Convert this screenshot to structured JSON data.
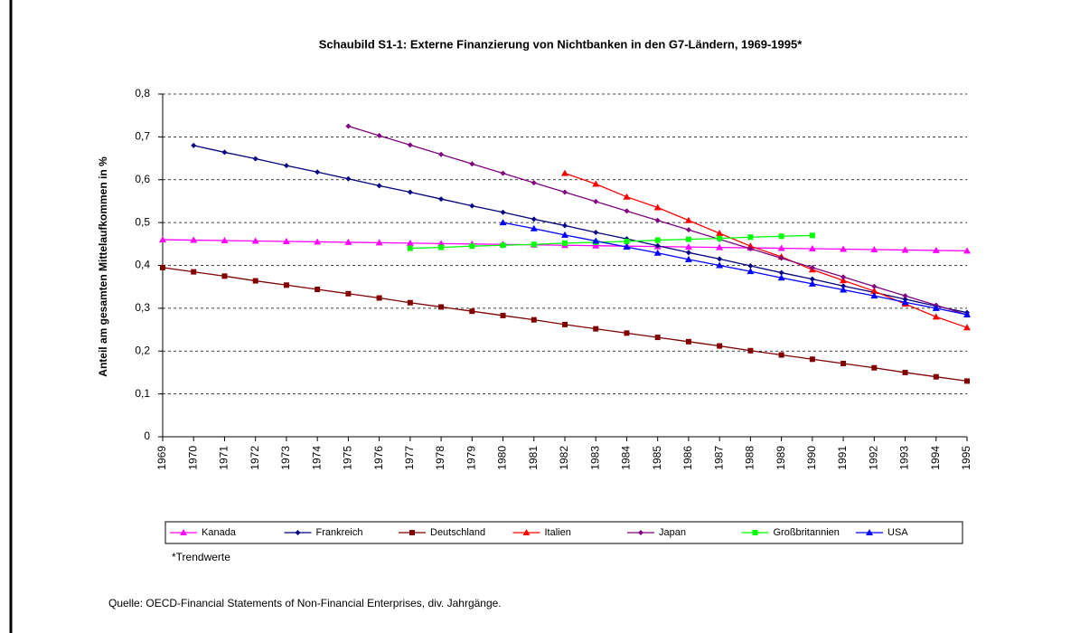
{
  "chart_data": {
    "type": "line",
    "title": "Schaubild S1-1: Externe Finanzierung von Nichtbanken in den G7-Ländern, 1969-1995*",
    "y_label": "Anteil am gesamten Mittelaufkommen in %",
    "note": "*Trendwerte",
    "source": "Quelle: OECD-Financial Statements of Non-Financial Enterprises, div. Jahrgänge.",
    "categories": [
      "1969",
      "1970",
      "1971",
      "1972",
      "1973",
      "1974",
      "1975",
      "1976",
      "1977",
      "1978",
      "1979",
      "1980",
      "1981",
      "1982",
      "1983",
      "1984",
      "1985",
      "1986",
      "1987",
      "1988",
      "1989",
      "1990",
      "1991",
      "1992",
      "1993",
      "1994",
      "1995"
    ],
    "ylim": [
      0,
      0.8
    ],
    "yticks": [
      0,
      {
        "value": 0.1,
        "label": "0,1"
      },
      {
        "value": 0.2,
        "label": "0,2"
      },
      {
        "value": 0.3,
        "label": "0,3"
      },
      {
        "value": 0.4,
        "label": "0,4"
      },
      {
        "value": 0.5,
        "label": "0,5"
      },
      {
        "value": 0.6,
        "label": "0,6"
      },
      {
        "value": 0.7,
        "label": "0,7"
      },
      {
        "value": 0.8,
        "label": "0,8"
      }
    ],
    "grid": true,
    "legend": "bottom",
    "series": [
      {
        "name": "Kanada",
        "color": "#ff00ff",
        "values": [
          0.46,
          0.459,
          0.458,
          0.457,
          0.456,
          0.455,
          0.454,
          0.453,
          0.452,
          0.451,
          0.45,
          0.449,
          0.448,
          0.447,
          0.446,
          0.445,
          0.444,
          0.443,
          0.442,
          0.441,
          0.44,
          0.439,
          0.438,
          0.437,
          0.436,
          0.435,
          0.434
        ]
      },
      {
        "name": "Frankreich",
        "color": "#000080",
        "values": [
          null,
          0.68,
          0.664,
          0.649,
          0.633,
          0.618,
          0.602,
          0.586,
          0.571,
          0.555,
          0.539,
          0.524,
          0.508,
          0.493,
          0.477,
          0.462,
          0.446,
          0.43,
          0.415,
          0.399,
          0.383,
          0.368,
          0.352,
          0.337,
          0.321,
          0.305,
          0.29
        ]
      },
      {
        "name": "Deutschland",
        "color": "#800000",
        "values": [
          0.395,
          0.385,
          0.375,
          0.364,
          0.354,
          0.344,
          0.334,
          0.324,
          0.313,
          0.303,
          0.293,
          0.283,
          0.273,
          0.262,
          0.252,
          0.242,
          0.232,
          0.222,
          0.212,
          0.201,
          0.191,
          0.181,
          0.171,
          0.161,
          0.15,
          0.14,
          0.13
        ]
      },
      {
        "name": "Italien",
        "color": "#ff0000",
        "values": [
          null,
          null,
          null,
          null,
          null,
          null,
          null,
          null,
          null,
          null,
          null,
          null,
          null,
          0.615,
          0.59,
          0.56,
          0.535,
          0.505,
          0.475,
          0.445,
          0.42,
          0.39,
          0.365,
          0.34,
          0.31,
          0.28,
          0.255
        ]
      },
      {
        "name": "Japan",
        "color": "#800080",
        "values": [
          null,
          null,
          null,
          null,
          null,
          null,
          0.725,
          0.703,
          0.681,
          0.659,
          0.637,
          0.615,
          0.593,
          0.571,
          0.549,
          0.527,
          0.505,
          0.483,
          0.461,
          0.439,
          0.417,
          0.395,
          0.373,
          0.351,
          0.329,
          0.307,
          0.285
        ]
      },
      {
        "name": "Großbritannien",
        "color": "#00ff00",
        "values": [
          null,
          null,
          null,
          null,
          null,
          null,
          null,
          null,
          0.44,
          0.442,
          0.445,
          0.447,
          0.449,
          0.452,
          0.454,
          0.456,
          0.459,
          0.461,
          0.463,
          0.466,
          0.468,
          0.47,
          null,
          null,
          null,
          null,
          null
        ]
      },
      {
        "name": "USA",
        "color": "#0000ff",
        "values": [
          null,
          null,
          null,
          null,
          null,
          null,
          null,
          null,
          null,
          null,
          null,
          0.5,
          0.486,
          0.471,
          0.457,
          0.443,
          0.429,
          0.414,
          0.4,
          0.386,
          0.371,
          0.357,
          0.343,
          0.329,
          0.314,
          0.3,
          0.285
        ]
      }
    ]
  }
}
